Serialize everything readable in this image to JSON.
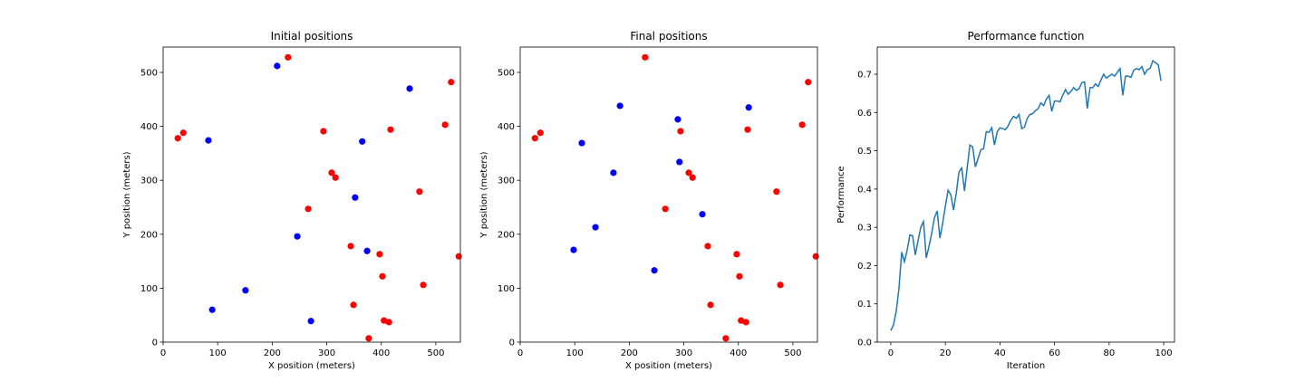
{
  "chart_data": [
    {
      "type": "scatter",
      "title": "Initial positions",
      "x_label": "X position (meters)",
      "y_label": "Y position (meters)",
      "xlim": [
        0,
        545
      ],
      "ylim": [
        0,
        547
      ],
      "xticks": [
        0,
        100,
        200,
        300,
        400,
        500
      ],
      "yticks": [
        0,
        100,
        200,
        300,
        400,
        500
      ],
      "series": [
        {
          "color": "red",
          "x": [
            229,
            27,
            37,
            294,
            528,
            517,
            417,
            309,
            316,
            266,
            470,
            344,
            397,
            542,
            402,
            477,
            349,
            405,
            414,
            377
          ],
          "y": [
            528,
            378,
            388,
            391,
            482,
            403,
            394,
            314,
            305,
            247,
            279,
            178,
            163,
            159,
            122,
            106,
            69,
            40,
            37,
            7
          ]
        },
        {
          "color": "blue",
          "x": [
            209,
            452,
            83,
            365,
            352,
            246,
            374,
            151,
            90,
            271
          ],
          "y": [
            512,
            470,
            374,
            372,
            268,
            196,
            169,
            96,
            60,
            39
          ]
        }
      ]
    },
    {
      "type": "scatter",
      "title": "Final positions",
      "x_label": "X position (meters)",
      "y_label": "Y position (meters)",
      "xlim": [
        0,
        545
      ],
      "ylim": [
        0,
        547
      ],
      "xticks": [
        0,
        100,
        200,
        300,
        400,
        500
      ],
      "yticks": [
        0,
        100,
        200,
        300,
        400,
        500
      ],
      "series": [
        {
          "color": "red",
          "x": [
            229,
            27,
            37,
            294,
            528,
            517,
            417,
            309,
            316,
            266,
            470,
            344,
            397,
            542,
            402,
            477,
            349,
            405,
            414,
            377
          ],
          "y": [
            528,
            378,
            388,
            391,
            482,
            403,
            394,
            314,
            305,
            247,
            279,
            178,
            163,
            159,
            122,
            106,
            69,
            40,
            37,
            7
          ]
        },
        {
          "color": "blue",
          "x": [
            183,
            419,
            289,
            113,
            292,
            171,
            334,
            138,
            98,
            246
          ],
          "y": [
            438,
            435,
            413,
            369,
            334,
            314,
            237,
            213,
            171,
            133
          ]
        }
      ]
    },
    {
      "type": "line",
      "title": "Performance function",
      "x_label": "Iteration",
      "y_label": "Performance",
      "xlim": [
        -4.95,
        103.95
      ],
      "ylim": [
        0,
        0.771
      ],
      "xticks": [
        0,
        20,
        40,
        60,
        80,
        100
      ],
      "yticks": [
        {
          "value": 0,
          "label": "0.0"
        },
        0.1,
        0.2,
        0.3,
        0.4,
        0.5,
        0.6,
        0.7
      ],
      "color": "#1f77b4",
      "x": [
        0,
        1,
        2,
        3,
        4,
        5,
        6,
        7,
        8,
        9,
        10,
        11,
        12,
        13,
        14,
        15,
        16,
        17,
        18,
        19,
        20,
        21,
        22,
        23,
        24,
        25,
        26,
        27,
        28,
        29,
        30,
        31,
        32,
        33,
        34,
        35,
        36,
        37,
        38,
        39,
        40,
        41,
        42,
        43,
        44,
        45,
        46,
        47,
        48,
        49,
        50,
        51,
        52,
        53,
        54,
        55,
        56,
        57,
        58,
        59,
        60,
        61,
        62,
        63,
        64,
        65,
        66,
        67,
        68,
        69,
        70,
        71,
        72,
        73,
        74,
        75,
        76,
        77,
        78,
        79,
        80,
        81,
        82,
        83,
        84,
        85,
        86,
        87,
        88,
        89,
        90,
        91,
        92,
        93,
        94,
        95,
        96,
        97,
        98,
        99
      ],
      "values": [
        0.03,
        0.045,
        0.08,
        0.14,
        0.235,
        0.21,
        0.24,
        0.28,
        0.278,
        0.228,
        0.265,
        0.3,
        0.315,
        0.22,
        0.25,
        0.285,
        0.325,
        0.343,
        0.272,
        0.31,
        0.355,
        0.397,
        0.385,
        0.345,
        0.39,
        0.445,
        0.455,
        0.395,
        0.455,
        0.515,
        0.51,
        0.458,
        0.48,
        0.503,
        0.505,
        0.55,
        0.548,
        0.56,
        0.515,
        0.55,
        0.56,
        0.558,
        0.555,
        0.565,
        0.58,
        0.59,
        0.585,
        0.595,
        0.558,
        0.562,
        0.585,
        0.595,
        0.597,
        0.605,
        0.61,
        0.625,
        0.618,
        0.635,
        0.645,
        0.603,
        0.63,
        0.63,
        0.628,
        0.645,
        0.66,
        0.648,
        0.655,
        0.665,
        0.658,
        0.662,
        0.678,
        0.68,
        0.61,
        0.665,
        0.665,
        0.675,
        0.668,
        0.685,
        0.7,
        0.69,
        0.695,
        0.7,
        0.695,
        0.705,
        0.715,
        0.645,
        0.695,
        0.695,
        0.692,
        0.71,
        0.715,
        0.712,
        0.72,
        0.7,
        0.712,
        0.715,
        0.735,
        0.73,
        0.725,
        0.683
      ]
    }
  ]
}
